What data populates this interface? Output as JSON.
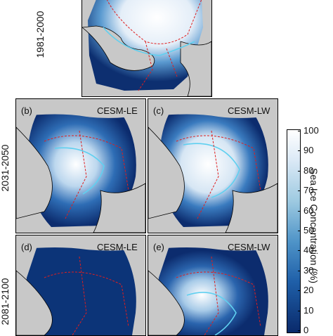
{
  "rows": [
    {
      "label": "1981-2000"
    },
    {
      "label": "2031-2050"
    },
    {
      "label": "2081-2100"
    }
  ],
  "panels": [
    {
      "id": "a",
      "letter": "",
      "model": "",
      "ice_fraction": 0.95
    },
    {
      "id": "b",
      "letter": "(b)",
      "model": "CESM-LE",
      "ice_fraction": 0.6
    },
    {
      "id": "c",
      "letter": "(c)",
      "model": "CESM-LW",
      "ice_fraction": 0.75
    },
    {
      "id": "d",
      "letter": "(d)",
      "model": "CESM-LE",
      "ice_fraction": 0.1
    },
    {
      "id": "e",
      "letter": "(e)",
      "model": "CESM-LW",
      "ice_fraction": 0.5
    }
  ],
  "colorbar": {
    "title": "Sea Ice Concentration (%)",
    "ticks": [
      "100",
      "90",
      "80",
      "70",
      "60",
      "50",
      "40",
      "30",
      "20",
      "10",
      "0"
    ],
    "range": [
      0,
      100
    ],
    "colors": {
      "high": "#ffffff",
      "mid": "#4f94c8",
      "low": "#0a2a6b",
      "land": "#c8c8c8",
      "boundary": "#e01e1e",
      "edge": "#5fd0f0"
    }
  }
}
